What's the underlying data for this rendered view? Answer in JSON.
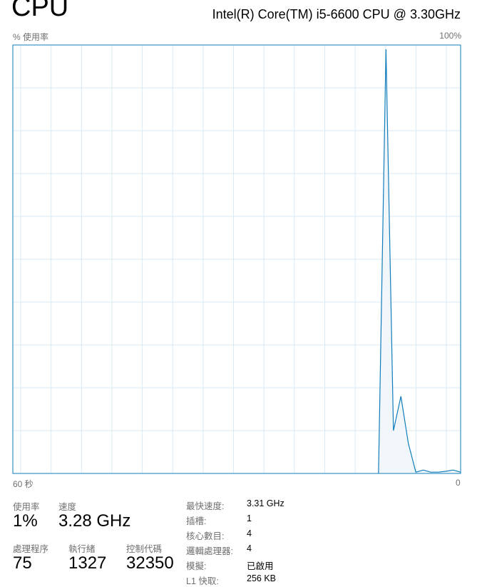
{
  "header": {
    "title": "CPU",
    "model": "Intel(R) Core(TM) i5-6600 CPU @ 3.30GHz"
  },
  "graph": {
    "ylabel": "% 使用率",
    "ymax_label": "100%",
    "xleft_label": "60 秒",
    "xright_label": "0"
  },
  "chart_data": {
    "type": "area",
    "xlim": [
      60,
      0
    ],
    "ylim": [
      0,
      100
    ],
    "grid": true,
    "line_color": "#117dbb",
    "fill_color": "#f1f6fa",
    "grid_color": "#d9eaf4",
    "x": [
      11,
      10,
      9,
      8,
      7,
      6,
      5,
      4,
      3,
      2,
      1,
      0
    ],
    "values": [
      0,
      99,
      10,
      18,
      7,
      0.3,
      0.8,
      0.3,
      0.3,
      0.5,
      0.8,
      0.3
    ]
  },
  "stats": {
    "utilization": {
      "label": "使用率",
      "value": "1%"
    },
    "speed": {
      "label": "速度",
      "value": "3.28 GHz"
    },
    "processes": {
      "label": "處理程序",
      "value": "75"
    },
    "threads": {
      "label": "執行緒",
      "value": "1327"
    },
    "handles": {
      "label": "控制代碼",
      "value": "32350"
    }
  },
  "specs": [
    {
      "label": "最快速度:",
      "value": "3.31 GHz"
    },
    {
      "label": "插槽:",
      "value": "1"
    },
    {
      "label": "核心數目:",
      "value": "4"
    },
    {
      "label": "邏輯處理器:",
      "value": "4"
    },
    {
      "label": "模擬:",
      "value": "已啟用"
    },
    {
      "label": "L1 快取:",
      "value": "256 KB"
    }
  ]
}
